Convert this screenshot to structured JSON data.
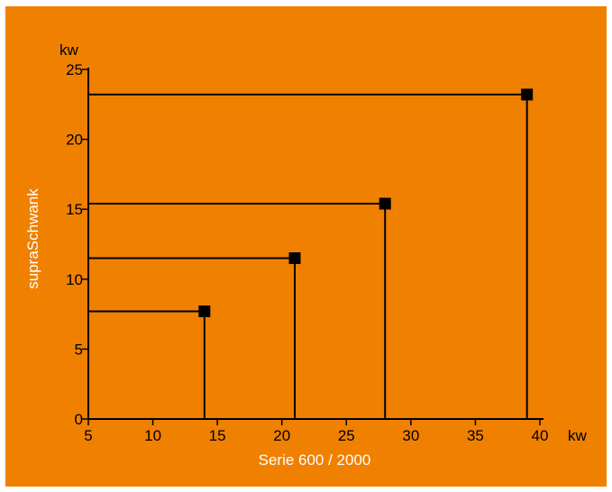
{
  "colors": {
    "background": "#f08000",
    "marks": "#000000",
    "axis_title": "#ffffff"
  },
  "chart_data": {
    "type": "scatter",
    "xlabel": "Serie 600 / 2000",
    "ylabel": "supraSchwank",
    "x_unit": "kw",
    "y_unit": "kw",
    "xlim": [
      5,
      40
    ],
    "ylim": [
      0,
      25
    ],
    "x_ticks": [
      "5",
      "10",
      "15",
      "20",
      "25",
      "30",
      "35",
      "40"
    ],
    "y_ticks": [
      "0",
      "5",
      "10",
      "15",
      "20",
      "25"
    ],
    "grid": false,
    "drop_lines": true,
    "points": [
      {
        "x": 14,
        "y": 7.7
      },
      {
        "x": 21,
        "y": 11.5
      },
      {
        "x": 28,
        "y": 15.4
      },
      {
        "x": 39,
        "y": 23.2
      }
    ]
  }
}
